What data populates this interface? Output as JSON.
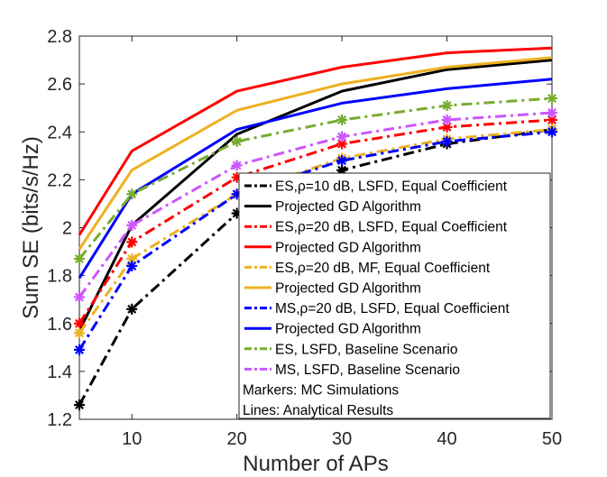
{
  "chart_data": {
    "type": "line",
    "xlabel": "Number of APs",
    "ylabel": "Sum SE (bits/s/Hz)",
    "xlim": [
      5,
      50
    ],
    "ylim": [
      1.2,
      2.8
    ],
    "xticks": [
      10,
      20,
      30,
      40,
      50
    ],
    "yticks": [
      1.2,
      1.4,
      1.6,
      1.8,
      2,
      2.2,
      2.4,
      2.6,
      2.8
    ],
    "ytick_labels": [
      "1.2",
      "1.4",
      "1.6",
      "1.8",
      "2",
      "2.2",
      "2.4",
      "2.6",
      "2.8"
    ],
    "legend_position": "inside-bottom-right",
    "series": [
      {
        "name": "ES,ρ=10 dB, LSFD, Equal Coefficient",
        "style": "dashdot",
        "color": "#000000",
        "marker": true,
        "x": [
          5,
          10,
          20,
          30,
          40,
          50
        ],
        "y": [
          1.26,
          1.66,
          2.06,
          2.24,
          2.35,
          2.41
        ]
      },
      {
        "name": "Projected GD Algorithm",
        "style": "solid",
        "color": "#000000",
        "marker": false,
        "x": [
          5,
          10,
          20,
          30,
          40,
          50
        ],
        "y": [
          1.57,
          2.01,
          2.39,
          2.57,
          2.66,
          2.7
        ]
      },
      {
        "name": "ES,ρ=20 dB, LSFD, Equal Coefficient",
        "style": "dashdot",
        "color": "#ff0000",
        "marker": true,
        "x": [
          5,
          10,
          20,
          30,
          40,
          50
        ],
        "y": [
          1.6,
          1.94,
          2.21,
          2.35,
          2.42,
          2.45
        ]
      },
      {
        "name": "Projected GD Algorithm",
        "style": "solid",
        "color": "#ff0000",
        "marker": false,
        "x": [
          5,
          10,
          20,
          30,
          40,
          50
        ],
        "y": [
          1.97,
          2.32,
          2.57,
          2.67,
          2.73,
          2.75
        ]
      },
      {
        "name": "ES,ρ=20 dB, MF, Equal Coefficient",
        "style": "dashdot",
        "color": "#edb120",
        "marker": true,
        "x": [
          5,
          10,
          20,
          30,
          40,
          50
        ],
        "y": [
          1.56,
          1.87,
          2.14,
          2.29,
          2.37,
          2.41
        ]
      },
      {
        "name": "Projected GD Algorithm",
        "style": "solid",
        "color": "#edb120",
        "marker": false,
        "x": [
          5,
          10,
          20,
          30,
          40,
          50
        ],
        "y": [
          1.91,
          2.24,
          2.49,
          2.6,
          2.67,
          2.71
        ]
      },
      {
        "name": "MS,ρ=20 dB, LSFD, Equal Coefficient",
        "style": "dashdot",
        "color": "#0000ff",
        "marker": true,
        "x": [
          5,
          10,
          20,
          30,
          40,
          50
        ],
        "y": [
          1.49,
          1.84,
          2.14,
          2.28,
          2.36,
          2.4
        ]
      },
      {
        "name": "Projected GD Algorithm",
        "style": "solid",
        "color": "#0000ff",
        "marker": false,
        "x": [
          5,
          10,
          20,
          30,
          40,
          50
        ],
        "y": [
          1.79,
          2.14,
          2.41,
          2.52,
          2.58,
          2.62
        ]
      },
      {
        "name": "ES, LSFD, Baseline Scenario",
        "style": "dashdot",
        "color": "#77ac30",
        "marker": true,
        "x": [
          5,
          10,
          20,
          30,
          40,
          50
        ],
        "y": [
          1.87,
          2.14,
          2.36,
          2.45,
          2.51,
          2.54
        ]
      },
      {
        "name": "MS, LSFD, Baseline Scenario",
        "style": "dashdot",
        "color": "#cc55ff",
        "marker": true,
        "x": [
          5,
          10,
          20,
          30,
          40,
          50
        ],
        "y": [
          1.71,
          2.01,
          2.26,
          2.38,
          2.45,
          2.48
        ]
      }
    ],
    "legend_notes": [
      "Markers: MC Simulations",
      "Lines: Analytical Results"
    ]
  }
}
